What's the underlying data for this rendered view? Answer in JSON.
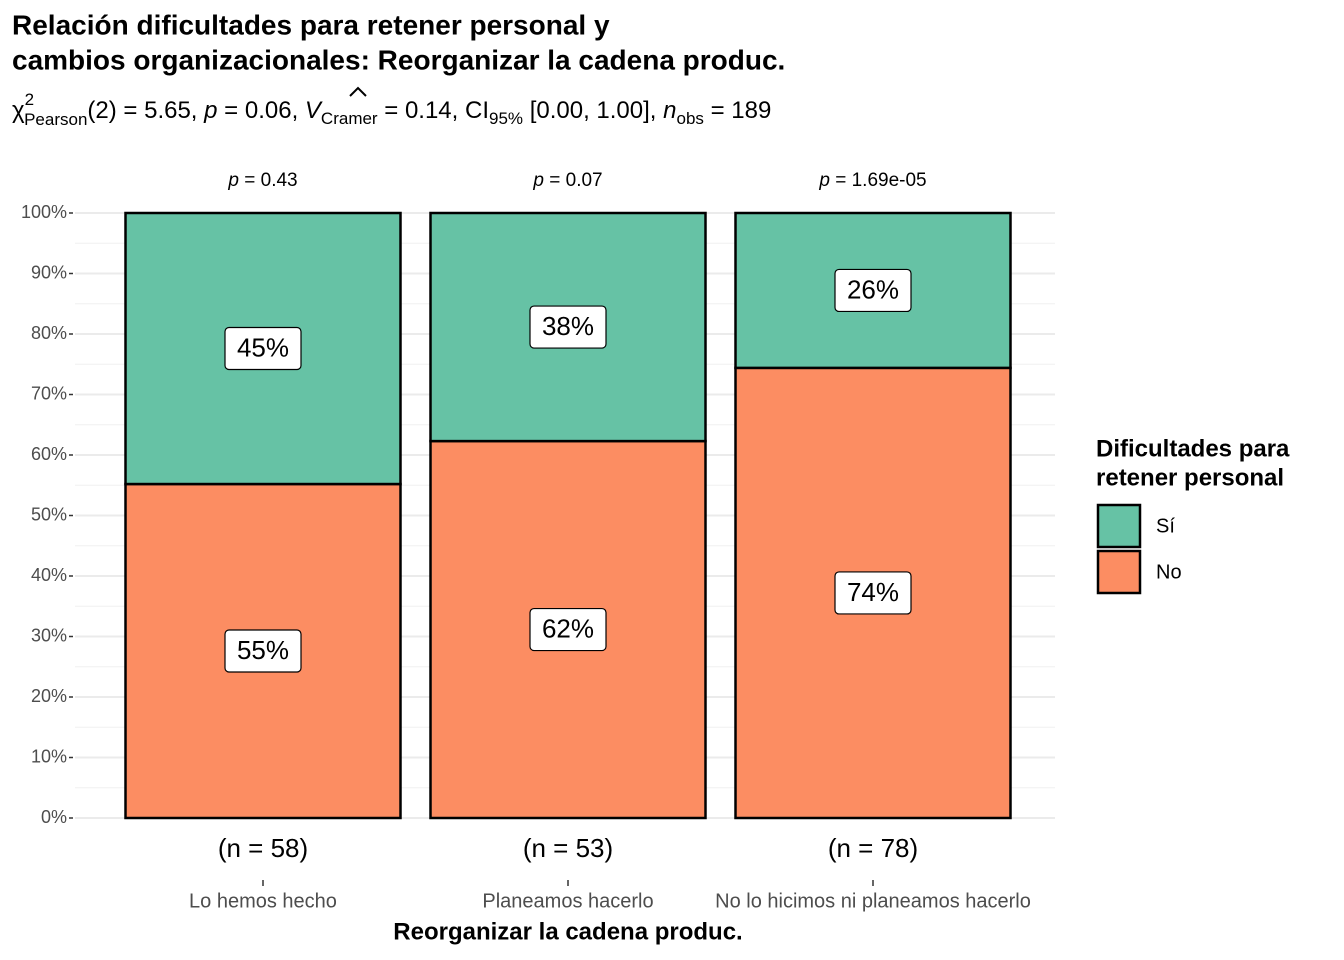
{
  "chart_data": {
    "type": "stacked_bar",
    "title": [
      "Relación dificultades para retener personal y",
      "cambios organizacionales: Reorganizar la cadena produc."
    ],
    "subtitle": [
      "χ",
      "2",
      "Pearson",
      "(2) = 5.65, ",
      "p",
      " = 0.06, ",
      "V",
      "Cramer",
      " = 0.14, CI",
      "95%",
      " [0.00, 1.00], ",
      "n",
      "obs",
      " = 189"
    ],
    "annotations": [
      [
        "p",
        " = 0.43"
      ],
      [
        "p",
        " = 0.07"
      ],
      [
        "p",
        " = 1.69e-05"
      ]
    ],
    "sample_sizes": [
      "(n = 58)",
      "(n = 53)",
      "(n = 78)"
    ],
    "x_label": "Reorganizar la cadena produc.",
    "categories": [
      "Lo hemos hecho",
      "Planeamos hacerlo",
      "No lo hicimos ni planeamos hacerlo"
    ],
    "series": [
      {
        "name": "No",
        "color": "#fc8d62",
        "values": [
          55.2,
          62.3,
          74.4
        ],
        "value_labels": [
          "55%",
          "62%",
          "74%"
        ]
      },
      {
        "name": "Sí",
        "color": "#66c2a5",
        "values": [
          44.8,
          37.7,
          25.6
        ],
        "value_labels": [
          "45%",
          "38%",
          "26%"
        ]
      }
    ],
    "legend_title": [
      "Dificultades para",
      "retener personal"
    ],
    "legend_position": "right",
    "ylim": [
      0,
      100
    ],
    "yticks": [
      {
        "value": 0,
        "label": "0%"
      },
      {
        "value": 10,
        "label": "10%"
      },
      {
        "value": 20,
        "label": "20%"
      },
      {
        "value": 30,
        "label": "30%"
      },
      {
        "value": 40,
        "label": "40%"
      },
      {
        "value": 50,
        "label": "50%"
      },
      {
        "value": 60,
        "label": "60%"
      },
      {
        "value": 70,
        "label": "70%"
      },
      {
        "value": 80,
        "label": "80%"
      },
      {
        "value": 90,
        "label": "90%"
      },
      {
        "value": 100,
        "label": "100%"
      }
    ],
    "grid": true
  }
}
